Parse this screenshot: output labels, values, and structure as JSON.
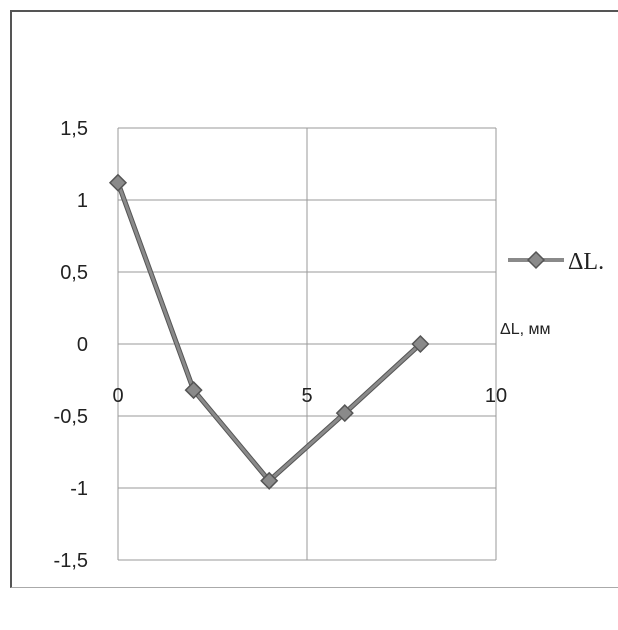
{
  "chart_data": {
    "type": "line",
    "series": [
      {
        "name": "ΔL.",
        "x": [
          0,
          2,
          4,
          6,
          8
        ],
        "y": [
          1.12,
          -0.32,
          -0.95,
          -0.48,
          0.0
        ],
        "color": "#8a8a8a"
      }
    ],
    "xlim": [
      0,
      10
    ],
    "ylim": [
      -1.5,
      1.5
    ],
    "x_ticks": [
      "0",
      "5",
      "10"
    ],
    "y_ticks": [
      "1,5",
      "1",
      "0,5",
      "0",
      "-0,5",
      "-1",
      "-1,5"
    ],
    "x_label": "ΔL, мм",
    "legend_label": "ΔL.",
    "legend_position": "right",
    "grid": true
  }
}
